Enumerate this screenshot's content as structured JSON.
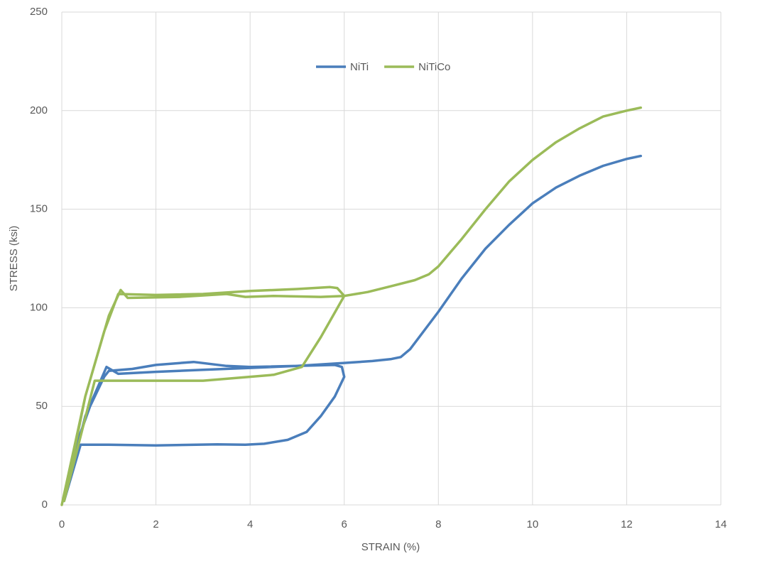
{
  "chart_data": {
    "type": "line",
    "xlabel": "STRAIN (%)",
    "ylabel": "STRESS (ksi)",
    "xlim": [
      0,
      14
    ],
    "xticks": [
      0,
      2,
      4,
      6,
      8,
      10,
      12,
      14
    ],
    "ylim": [
      0,
      250
    ],
    "yticks": [
      0,
      50,
      100,
      150,
      200,
      250
    ],
    "grid": true,
    "legend": "top",
    "series": [
      {
        "name": "NiTi",
        "color": "#4a7ebb",
        "x": [
          0.05,
          0.3,
          0.6,
          0.9,
          1,
          1.5,
          2,
          2.8,
          3.5,
          4,
          5,
          5.8,
          5.95,
          6,
          5.8,
          5.5,
          5.2,
          4.8,
          4.3,
          3.9,
          3.3,
          2,
          1,
          0.4,
          0.05,
          0.5,
          0.95,
          1.2,
          2,
          3,
          4,
          5,
          6,
          6.6,
          7,
          7.2,
          7.4,
          8,
          8.5,
          9,
          9.5,
          10,
          10.5,
          11,
          11.5,
          12,
          12.3
        ],
        "values": [
          2,
          30,
          50,
          65,
          68,
          69,
          71,
          72.5,
          70.5,
          70,
          70.5,
          71,
          70,
          65,
          55,
          45,
          37,
          33,
          31,
          30.5,
          30.7,
          30.2,
          30.5,
          30.5,
          2,
          45,
          70,
          66.5,
          67.5,
          68.5,
          69.5,
          70.5,
          72,
          73,
          74,
          75,
          79,
          98,
          115,
          130,
          142,
          153,
          161,
          167,
          172,
          175.5,
          177
        ]
      },
      {
        "name": "NiTiCo",
        "color": "#9bbb59",
        "x": [
          0,
          0.5,
          0.9,
          1.2,
          2,
          3,
          4,
          5,
          5.7,
          5.85,
          6,
          5.5,
          5.1,
          4.5,
          3,
          1.5,
          0.7,
          0.05,
          0.5,
          1,
          1.25,
          1.4,
          2.5,
          3.5,
          3.9,
          4.5,
          5.5,
          6,
          6.5,
          7,
          7.5,
          7.8,
          8,
          8.5,
          9,
          9.5,
          10,
          10.5,
          11,
          11.5,
          12,
          12.3
        ],
        "values": [
          0,
          55,
          88,
          107,
          106.5,
          107,
          108.5,
          109.5,
          110.5,
          110,
          106,
          85,
          70,
          66,
          63,
          63,
          63,
          2,
          55,
          96,
          109,
          105,
          105.5,
          107,
          105.5,
          106,
          105.5,
          106,
          108,
          111,
          114,
          117,
          121,
          135,
          150,
          164,
          175,
          184,
          191,
          197,
          200,
          201.5
        ]
      }
    ]
  }
}
